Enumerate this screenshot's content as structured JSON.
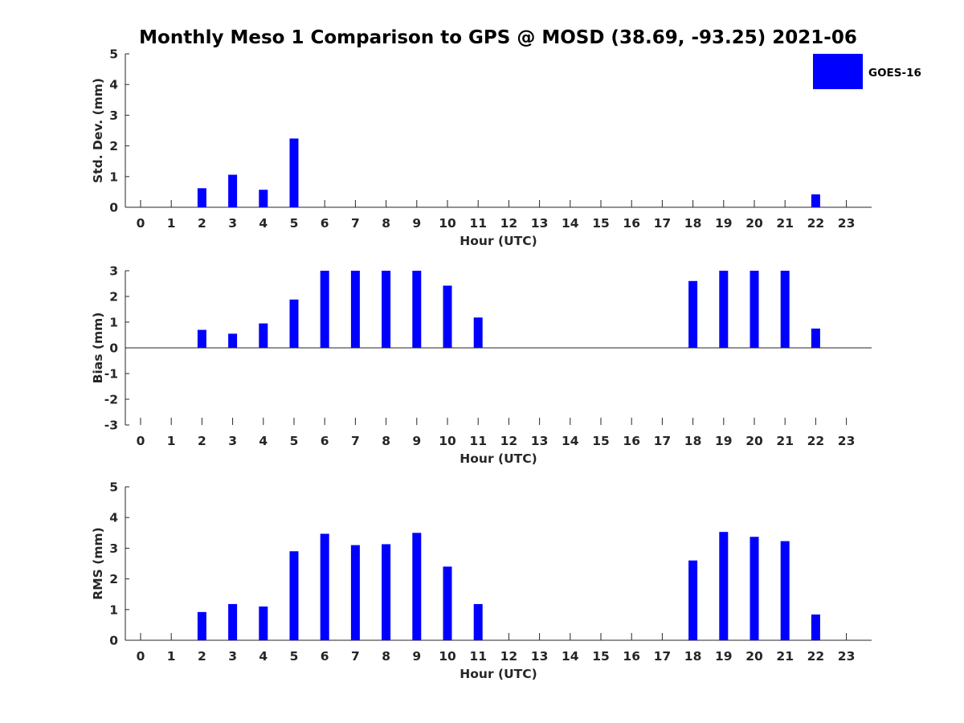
{
  "title": "Monthly Meso 1 Comparison to GPS @ MOSD (38.69, -93.25) 2021-06",
  "legend": {
    "label": "GOES-16",
    "color": "#0000ff"
  },
  "chart_data": [
    {
      "type": "bar",
      "name": "std-dev",
      "title": "Monthly Meso 1 Comparison to GPS @ MOSD (38.69, -93.25) 2021-06",
      "xlabel": "Hour (UTC)",
      "ylabel": "Std. Dev. (mm)",
      "categories": [
        "0",
        "1",
        "2",
        "3",
        "4",
        "5",
        "6",
        "7",
        "8",
        "9",
        "10",
        "11",
        "12",
        "13",
        "14",
        "15",
        "16",
        "17",
        "18",
        "19",
        "20",
        "21",
        "22",
        "23"
      ],
      "ylim": [
        0,
        5
      ],
      "yticks": [
        "0",
        "1",
        "2",
        "3",
        "4",
        "5"
      ],
      "series": [
        {
          "name": "GOES-16",
          "values": [
            null,
            null,
            0.62,
            1.06,
            0.57,
            2.24,
            null,
            null,
            null,
            null,
            null,
            null,
            null,
            null,
            null,
            null,
            null,
            null,
            null,
            null,
            null,
            null,
            0.42,
            null
          ]
        }
      ]
    },
    {
      "type": "bar",
      "name": "bias",
      "xlabel": "Hour (UTC)",
      "ylabel": "Bias (mm)",
      "categories": [
        "0",
        "1",
        "2",
        "3",
        "4",
        "5",
        "6",
        "7",
        "8",
        "9",
        "10",
        "11",
        "12",
        "13",
        "14",
        "15",
        "16",
        "17",
        "18",
        "19",
        "20",
        "21",
        "22",
        "23"
      ],
      "ylim": [
        -3,
        3
      ],
      "yticks": [
        "-3",
        "-2",
        "-1",
        "0",
        "1",
        "2",
        "3"
      ],
      "series": [
        {
          "name": "GOES-16",
          "values": [
            null,
            null,
            0.7,
            0.55,
            0.95,
            1.88,
            3.0,
            3.0,
            3.0,
            3.0,
            2.42,
            1.18,
            null,
            null,
            null,
            null,
            null,
            null,
            2.6,
            3.0,
            3.0,
            3.0,
            0.75,
            null
          ]
        }
      ]
    },
    {
      "type": "bar",
      "name": "rms",
      "xlabel": "Hour (UTC)",
      "ylabel": "RMS (mm)",
      "categories": [
        "0",
        "1",
        "2",
        "3",
        "4",
        "5",
        "6",
        "7",
        "8",
        "9",
        "10",
        "11",
        "12",
        "13",
        "14",
        "15",
        "16",
        "17",
        "18",
        "19",
        "20",
        "21",
        "22",
        "23"
      ],
      "ylim": [
        0,
        5
      ],
      "yticks": [
        "0",
        "1",
        "2",
        "3",
        "4",
        "5"
      ],
      "series": [
        {
          "name": "GOES-16",
          "values": [
            null,
            null,
            0.92,
            1.18,
            1.1,
            2.9,
            3.47,
            3.1,
            3.13,
            3.5,
            2.4,
            1.18,
            null,
            null,
            null,
            null,
            null,
            null,
            2.6,
            3.53,
            3.37,
            3.23,
            0.84,
            null
          ]
        }
      ]
    }
  ]
}
